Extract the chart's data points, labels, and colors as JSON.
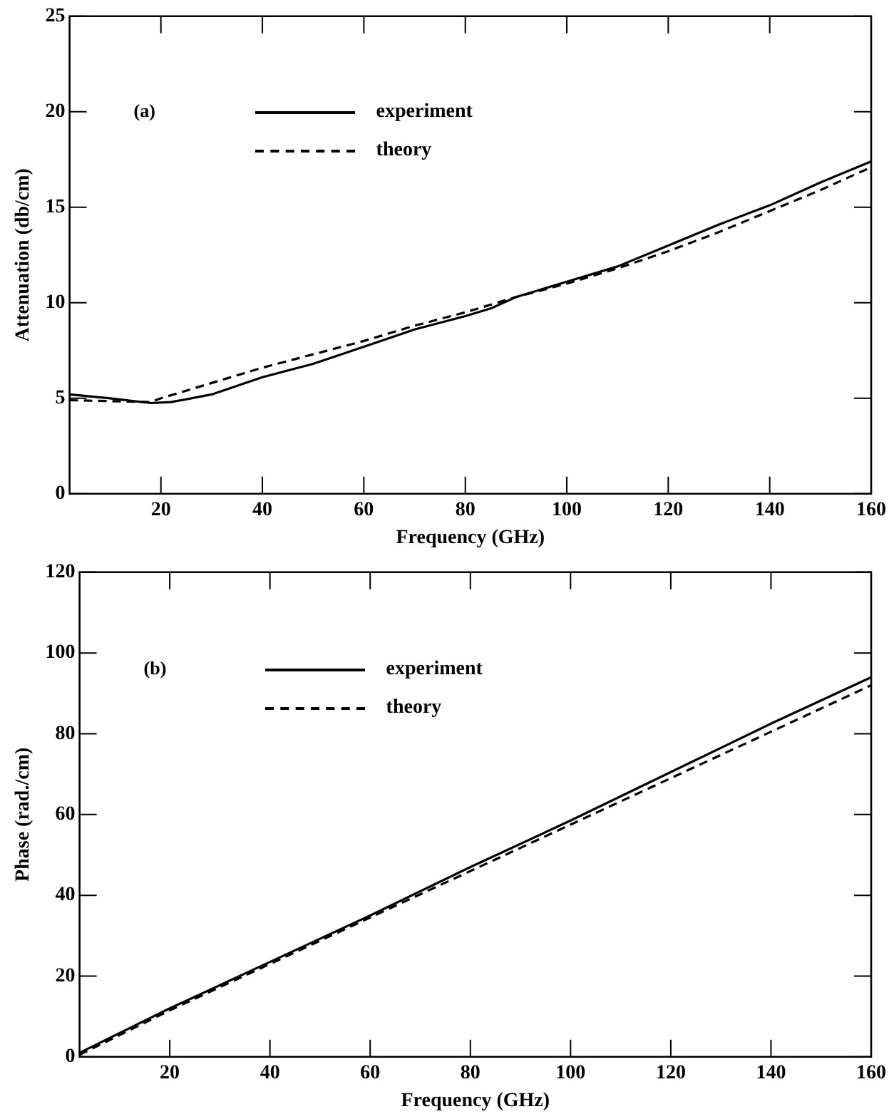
{
  "chart_data": [
    {
      "type": "line",
      "xlabel": "Frequency (GHz)",
      "ylabel": "Attenuation (db/cm)",
      "annotations": [
        "(a)"
      ],
      "legend": "top left",
      "grid": false,
      "marker": "none",
      "xlim": [
        2,
        160
      ],
      "ylim": [
        0,
        25
      ],
      "xticks": [
        20,
        40,
        60,
        80,
        100,
        120,
        140,
        160
      ],
      "yticks": [
        0,
        5,
        10,
        15,
        20,
        25
      ],
      "series": [
        {
          "name": "experiment",
          "color": "#000000",
          "line_style": "solid",
          "x": [
            2,
            10,
            18,
            22,
            30,
            40,
            50,
            60,
            70,
            80,
            85,
            90,
            100,
            110,
            120,
            130,
            140,
            150,
            160
          ],
          "values": [
            5.2,
            5.0,
            4.75,
            4.8,
            5.2,
            6.1,
            6.8,
            7.7,
            8.6,
            9.3,
            9.7,
            10.3,
            11.1,
            11.9,
            13.0,
            14.1,
            15.1,
            16.3,
            17.4
          ]
        },
        {
          "name": "theory",
          "color": "#000000",
          "line_style": "dashed",
          "x": [
            2,
            10,
            18,
            20,
            30,
            40,
            50,
            60,
            70,
            80,
            90,
            100,
            110,
            120,
            130,
            140,
            150,
            160
          ],
          "values": [
            4.9,
            4.85,
            4.8,
            5.0,
            5.8,
            6.6,
            7.3,
            8.0,
            8.8,
            9.5,
            10.3,
            11.0,
            11.8,
            12.7,
            13.7,
            14.8,
            15.9,
            17.1
          ]
        }
      ]
    },
    {
      "type": "line",
      "xlabel": "Frequency (GHz)",
      "ylabel": "Phase (rad./cm)",
      "annotations": [
        "(b)"
      ],
      "legend": "top left",
      "grid": false,
      "marker": "none",
      "xlim": [
        2,
        160
      ],
      "ylim": [
        0,
        120
      ],
      "xticks": [
        20,
        40,
        60,
        80,
        100,
        120,
        140,
        160
      ],
      "yticks": [
        0,
        20,
        40,
        60,
        80,
        100,
        120
      ],
      "series": [
        {
          "name": "experiment",
          "color": "#000000",
          "line_style": "solid",
          "x": [
            2,
            20,
            40,
            60,
            80,
            100,
            120,
            140,
            160
          ],
          "values": [
            1,
            12,
            23.5,
            35,
            47,
            58.5,
            70.5,
            82.5,
            94
          ]
        },
        {
          "name": "theory",
          "color": "#000000",
          "line_style": "dashed",
          "x": [
            2,
            20,
            40,
            60,
            80,
            100,
            120,
            140,
            160
          ],
          "values": [
            0.5,
            11.5,
            23,
            34.5,
            46,
            57.5,
            69,
            80.5,
            92
          ]
        }
      ]
    }
  ]
}
